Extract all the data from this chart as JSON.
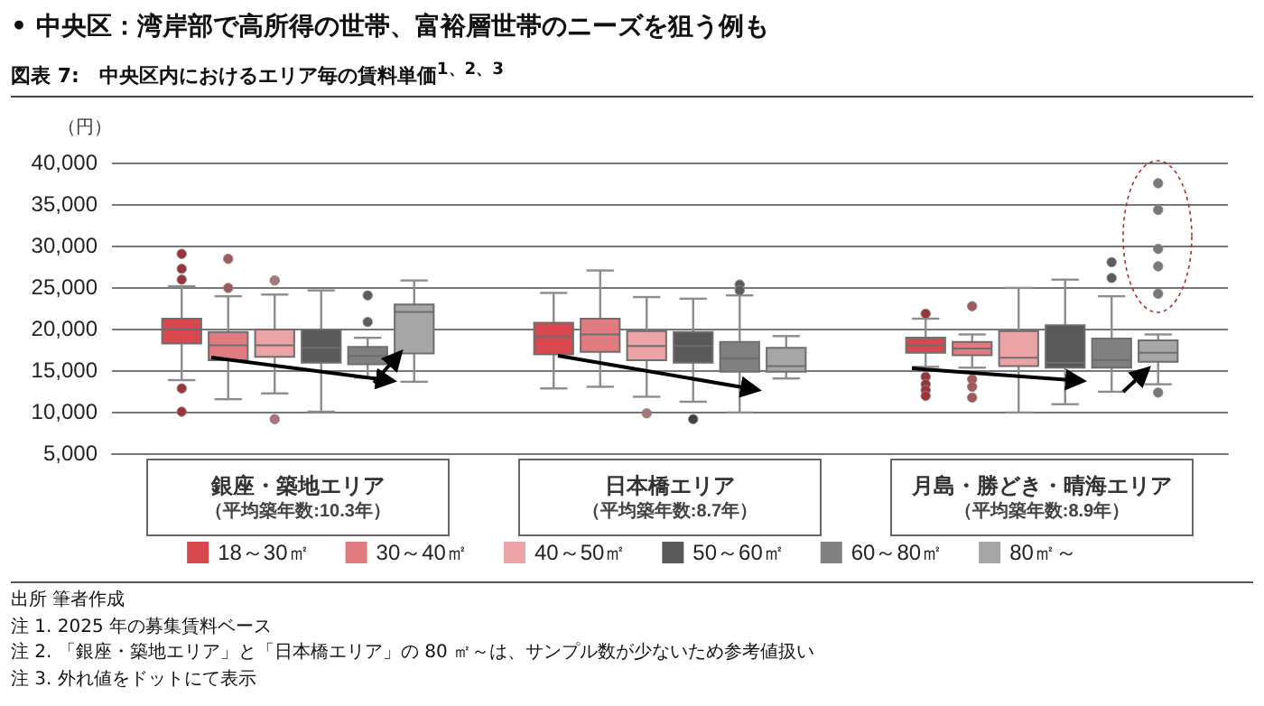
{
  "chart_data": {
    "type": "box",
    "title": "• 中央区：湾岸部で高所得の世帯、富裕層世帯のニーズを狙う例も",
    "subtitle": "図表 7:　中央区内におけるエリア毎の賃料単価$^{1、2、3}$",
    "ylabel": "（円）",
    "categories": [
      "銀座・築地エリア（平均築年数:10.3年）",
      "日本橋エリア（平均築年数:8.7年）",
      "月島・勝どき・晴海エリア（平均築年数:8.9年）"
    ],
    "ylim": [
      5000,
      40000
    ],
    "yticks": [
      {
        "value": 5000,
        "label": "5,000"
      },
      {
        "value": 10000,
        "label": "10,000"
      },
      {
        "value": 15000,
        "label": "15,000"
      },
      {
        "value": 20000,
        "label": "20,000"
      },
      {
        "value": 25000,
        "label": "25,000"
      },
      {
        "value": 30000,
        "label": "30,000"
      },
      {
        "value": 35000,
        "label": "35,000"
      },
      {
        "value": 40000,
        "label": "40,000"
      }
    ],
    "grid": "y",
    "legend": "bottom",
    "series": [
      {
        "name": "18～30㎡",
        "color": "#d9474f",
        "boxes": [
          {
            "low": 13800,
            "q1": 18200,
            "median": 19900,
            "q3": 21200,
            "high": 25100,
            "outliers": [
              29000,
              27200,
              25900,
              12800,
              10000
            ]
          },
          {
            "low": 12800,
            "q1": 16900,
            "median": 19000,
            "q3": 20700,
            "high": 24300
          },
          {
            "low": 15400,
            "q1": 17100,
            "median": 18000,
            "q3": 18900,
            "high": 21200,
            "outliers": [
              21800,
              14200,
              13300,
              12600,
              11900
            ]
          }
        ]
      },
      {
        "name": "30～40㎡",
        "color": "#e07b80",
        "boxes": [
          {
            "low": 11500,
            "q1": 16200,
            "median": 18000,
            "q3": 19600,
            "high": 23900,
            "outliers": [
              28400,
              24900
            ]
          },
          {
            "low": 13000,
            "q1": 17200,
            "median": 19300,
            "q3": 21200,
            "high": 27000
          },
          {
            "low": 15300,
            "q1": 16800,
            "median": 17600,
            "q3": 18400,
            "high": 19300,
            "outliers": [
              22700,
              13900,
              13000,
              11700
            ]
          }
        ]
      },
      {
        "name": "40～50㎡",
        "color": "#eba3a5",
        "boxes": [
          {
            "low": 12200,
            "q1": 16600,
            "median": 18000,
            "q3": 19900,
            "high": 24100,
            "outliers": [
              25800,
              9100
            ]
          },
          {
            "low": 11800,
            "q1": 16200,
            "median": 17900,
            "q3": 19700,
            "high": 23800,
            "outliers": [
              9800
            ]
          },
          {
            "low": 9900,
            "q1": 15500,
            "median": 16500,
            "q3": 19700,
            "high": 24900
          }
        ]
      },
      {
        "name": "50～60㎡",
        "color": "#595959",
        "boxes": [
          {
            "low": 10000,
            "q1": 15900,
            "median": 17700,
            "q3": 19900,
            "high": 24600
          },
          {
            "low": 11200,
            "q1": 15900,
            "median": 17900,
            "q3": 19600,
            "high": 23600,
            "outliers": [
              9100
            ]
          },
          {
            "low": 10900,
            "q1": 15300,
            "median": 15900,
            "q3": 20400,
            "high": 25900
          }
        ]
      },
      {
        "name": "60～80㎡",
        "color": "#808080",
        "boxes": [
          {
            "low": 14100,
            "q1": 15700,
            "median": 16700,
            "q3": 17800,
            "high": 18900,
            "outliers": [
              24000,
              20800
            ]
          },
          {
            "low": 9900,
            "q1": 14800,
            "median": 16400,
            "q3": 18400,
            "high": 24000,
            "outliers": [
              25300,
              24600
            ]
          },
          {
            "low": 12400,
            "q1": 15300,
            "median": 16200,
            "q3": 18800,
            "high": 23900,
            "outliers": [
              28000,
              26100
            ]
          }
        ]
      },
      {
        "name": "80㎡～",
        "color": "#a6a6a6",
        "boxes": [
          {
            "low": 13600,
            "q1": 17000,
            "median": 22000,
            "q3": 22900,
            "high": 25800
          },
          {
            "low": 14000,
            "q1": 14800,
            "median": 15500,
            "q3": 17700,
            "high": 19100
          },
          {
            "low": 13300,
            "q1": 16000,
            "median": 17100,
            "q3": 18600,
            "high": 19300,
            "outliers": [
              37500,
              34300,
              29600,
              27500,
              24200,
              12300
            ]
          }
        ]
      }
    ],
    "annotations": [
      "出所 筆者作成",
      "注 1. 2025 年の募集賃料ベース",
      "注 2. 「銀座・築地エリア」と「日本橋エリア」の 80 ㎡～は、サンプル数が少ないため参考値扱い",
      "注 3. 外れ値をドットにて表示"
    ]
  }
}
